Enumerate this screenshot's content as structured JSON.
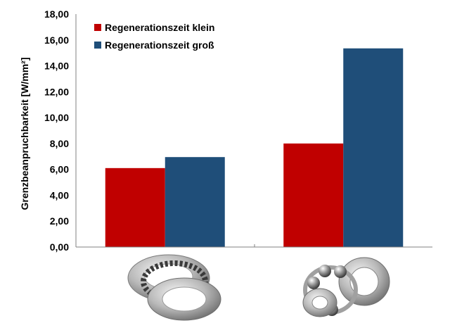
{
  "chart_data": {
    "type": "bar",
    "categories": [
      "",
      ""
    ],
    "series": [
      {
        "name": "Regenerationszeit klein",
        "values": [
          6.1,
          8.0
        ],
        "color": "#c00000"
      },
      {
        "name": "Regenerationszeit groß",
        "values": [
          6.95,
          15.35
        ],
        "color": "#1f4e79"
      }
    ],
    "ylabel": "Grenzbeanpruchbarkeit [W/mm²]",
    "xlabel": "",
    "ylim": [
      0,
      18
    ],
    "yticks": [
      "0,00",
      "2,00",
      "4,00",
      "6,00",
      "8,00",
      "10,00",
      "12,00",
      "14,00",
      "16,00",
      "18,00"
    ],
    "grid": false,
    "legend_position": "top-left",
    "category_images": [
      "thrust-needle-roller-bearing-icon",
      "thrust-ball-bearing-icon"
    ]
  }
}
